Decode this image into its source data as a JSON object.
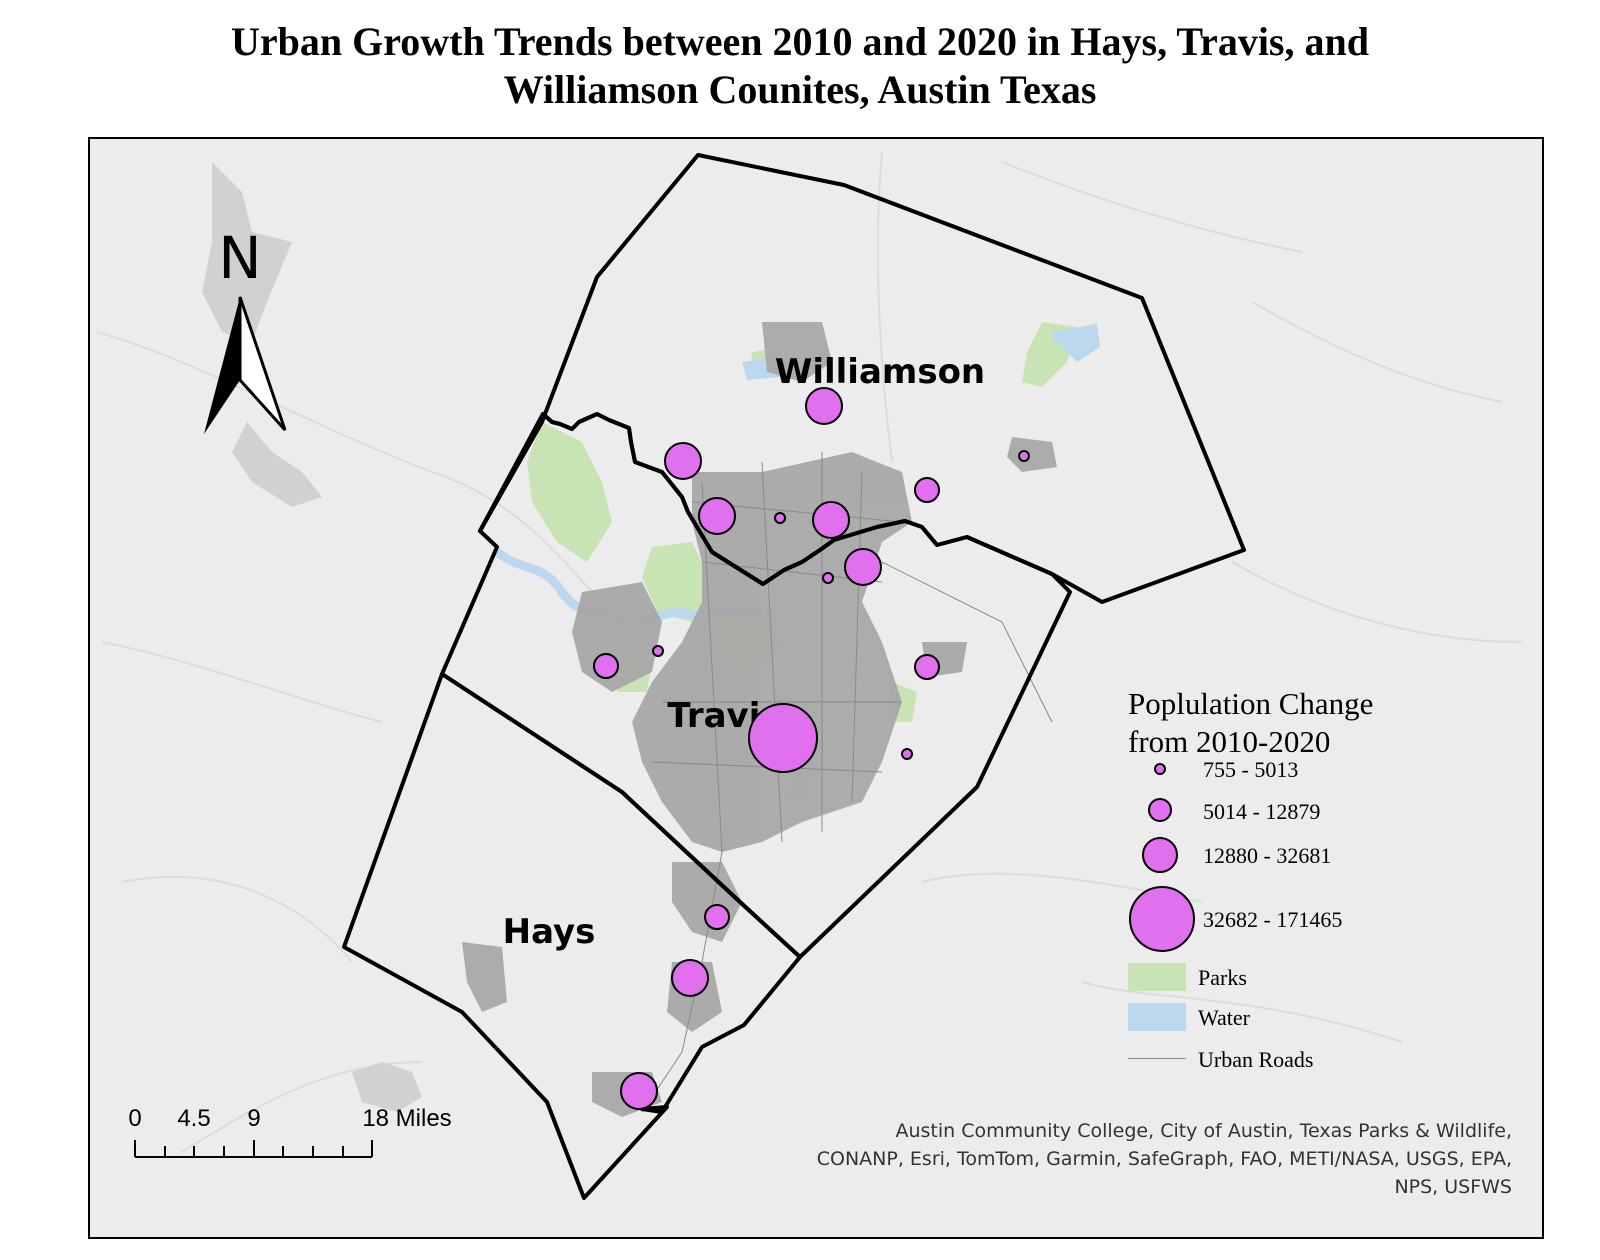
{
  "title": {
    "line1": "Urban Growth Trends between 2010 and 2020 in Hays, Travis, and",
    "line2": "Williamson Counites, Austin Texas"
  },
  "colors": {
    "background": "#ececec",
    "parks": "#c9e4b4",
    "water": "#bcd8ef",
    "urban_roads": "#8a8a8a",
    "county_boundary": "#000000",
    "population_circle": "#e070ee"
  },
  "counties": {
    "williamson": "Williamson",
    "travis": "Travis",
    "hays": "Hays"
  },
  "north_arrow": {
    "letter": "N",
    "icon": "north-arrow-icon"
  },
  "scale_bar": {
    "ticks": [
      "0",
      "4.5",
      "9",
      "18 Miles"
    ]
  },
  "legend": {
    "title_line1": "Poplulation Change",
    "title_line2": "from 2010-2020",
    "classes": [
      {
        "label": "755 - 5013",
        "size_class": 1
      },
      {
        "label": "5014 - 12879",
        "size_class": 2
      },
      {
        "label": "12880 - 32681",
        "size_class": 3
      },
      {
        "label": "32682 - 171465",
        "size_class": 4
      }
    ],
    "parks_label": "Parks",
    "water_label": "Water",
    "roads_label": "Urban Roads"
  },
  "points": [
    {
      "county": "Williamson",
      "size_class": 3
    },
    {
      "county": "Williamson",
      "size_class": 3
    },
    {
      "county": "Williamson",
      "size_class": 3
    },
    {
      "county": "Williamson",
      "size_class": 1
    },
    {
      "county": "Williamson",
      "size_class": 3
    },
    {
      "county": "Williamson",
      "size_class": 2
    },
    {
      "county": "Williamson",
      "size_class": 1
    },
    {
      "county": "Travis",
      "size_class": 3
    },
    {
      "county": "Travis",
      "size_class": 1
    },
    {
      "county": "Travis",
      "size_class": 2
    },
    {
      "county": "Travis",
      "size_class": 1
    },
    {
      "county": "Travis",
      "size_class": 2
    },
    {
      "county": "Travis",
      "size_class": 4
    },
    {
      "county": "Travis",
      "size_class": 1
    },
    {
      "county": "Hays",
      "size_class": 2
    },
    {
      "county": "Hays",
      "size_class": 3
    },
    {
      "county": "Hays",
      "size_class": 3
    }
  ],
  "attribution": {
    "line1": "Austin Community College, City of Austin, Texas Parks & Wildlife,",
    "line2": "CONANP, Esri, TomTom, Garmin, SafeGraph, FAO, METI/NASA, USGS, EPA,",
    "line3": "NPS, USFWS"
  }
}
